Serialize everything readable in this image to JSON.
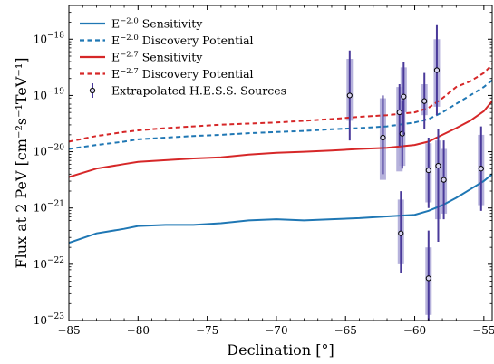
{
  "chart_data": {
    "type": "line",
    "title": "",
    "xlabel": "Declination [°]",
    "ylabel": "Flux at 2 PeV [cm⁻²s⁻¹TeV⁻¹]",
    "xlim": [
      -85,
      -54.4
    ],
    "ylim_log10": [
      -23,
      -17.4
    ],
    "log_y": true,
    "grid": false,
    "legend_position": "upper-left",
    "x_ticks": [
      -85,
      -80,
      -75,
      -70,
      -65,
      -60,
      -55
    ],
    "x_tick_labels": [
      "−85",
      "−80",
      "−75",
      "−70",
      "−65",
      "−60",
      "−55"
    ],
    "y_ticks_log10": [
      -23,
      -22,
      -21,
      -20,
      -19,
      -18
    ],
    "y_tick_labels": [
      {
        "base": "10",
        "exp": "−23"
      },
      {
        "base": "10",
        "exp": "−22"
      },
      {
        "base": "10",
        "exp": "−21"
      },
      {
        "base": "10",
        "exp": "−20"
      },
      {
        "base": "10",
        "exp": "−19"
      },
      {
        "base": "10",
        "exp": "−18"
      }
    ],
    "series": [
      {
        "name": "E^{-2.0} Sensitivity",
        "legend_base": "E",
        "legend_exp": "−2.0",
        "legend_rest": " Sensitivity",
        "color": "#1f77b4",
        "dash": "solid",
        "x": [
          -85,
          -83,
          -81,
          -80,
          -78,
          -76,
          -74,
          -72,
          -70,
          -68,
          -66,
          -64,
          -62,
          -60,
          -59,
          -58,
          -57,
          -56,
          -55,
          -54.4
        ],
        "y_log10": [
          -21.62,
          -21.45,
          -21.37,
          -21.32,
          -21.3,
          -21.3,
          -21.27,
          -21.22,
          -21.2,
          -21.22,
          -21.2,
          -21.18,
          -21.15,
          -21.12,
          -21.05,
          -20.95,
          -20.82,
          -20.67,
          -20.52,
          -20.4
        ]
      },
      {
        "name": "E^{-2.0} Discovery Potential",
        "legend_base": "E",
        "legend_exp": "−2.0",
        "legend_rest": " Discovery Potential",
        "color": "#1f77b4",
        "dash": "dashed",
        "x": [
          -85,
          -83,
          -81,
          -80,
          -78,
          -76,
          -74,
          -72,
          -70,
          -68,
          -66,
          -64,
          -62,
          -60,
          -59,
          -58,
          -57,
          -56,
          -55,
          -54.4
        ],
        "y_log10": [
          -19.95,
          -19.88,
          -19.82,
          -19.78,
          -19.75,
          -19.72,
          -19.7,
          -19.67,
          -19.65,
          -19.63,
          -19.6,
          -19.58,
          -19.55,
          -19.48,
          -19.42,
          -19.3,
          -19.15,
          -19.0,
          -18.85,
          -18.73
        ]
      },
      {
        "name": "E^{-2.7} Sensitivity",
        "legend_base": "E",
        "legend_exp": "−2.7",
        "legend_rest": " Sensitivity",
        "color": "#d62728",
        "dash": "solid",
        "x": [
          -85,
          -83,
          -81,
          -80,
          -78,
          -76,
          -74,
          -72,
          -70,
          -68,
          -66,
          -64,
          -62,
          -60,
          -59,
          -58,
          -57,
          -56,
          -55,
          -54.4
        ],
        "y_log10": [
          -20.45,
          -20.3,
          -20.22,
          -20.18,
          -20.15,
          -20.12,
          -20.1,
          -20.05,
          -20.02,
          -20.0,
          -19.98,
          -19.95,
          -19.93,
          -19.88,
          -19.82,
          -19.7,
          -19.58,
          -19.45,
          -19.28,
          -19.1
        ]
      },
      {
        "name": "E^{-2.7} Discovery Potential",
        "legend_base": "E",
        "legend_exp": "−2.7",
        "legend_rest": " Discovery Potential",
        "color": "#d62728",
        "dash": "dashed",
        "x": [
          -85,
          -83,
          -81,
          -80,
          -78,
          -76,
          -74,
          -72,
          -70,
          -68,
          -66,
          -64,
          -62,
          -60,
          -59,
          -58,
          -57,
          -56,
          -55,
          -54.4
        ],
        "y_log10": [
          -19.82,
          -19.72,
          -19.65,
          -19.62,
          -19.58,
          -19.55,
          -19.52,
          -19.5,
          -19.48,
          -19.45,
          -19.42,
          -19.38,
          -19.35,
          -19.3,
          -19.22,
          -19.05,
          -18.85,
          -18.75,
          -18.6,
          -18.45
        ]
      }
    ],
    "sources": {
      "name": "Extrapolated H.E.S.S. Sources",
      "color": "#4a3a9a",
      "box_color": "#a9a4d6",
      "points": [
        {
          "x": -64.7,
          "y_log10": -19.0,
          "err_log10": [
            -19.8,
            -18.2
          ],
          "box_log10": [
            -19.45,
            -18.35
          ]
        },
        {
          "x": -62.3,
          "y_log10": -19.75,
          "err_log10": [
            -20.4,
            -19.0
          ],
          "box_log10": [
            -20.5,
            -19.05
          ]
        },
        {
          "x": -61.1,
          "y_log10": -19.3,
          "err_log10": [
            -19.9,
            -18.8
          ],
          "box_log10": [
            -20.35,
            -18.85
          ]
        },
        {
          "x": -60.9,
          "y_log10": -19.68,
          "err_log10": [
            -20.3,
            -19.1
          ],
          "box_log10": [
            -20.25,
            -18.95
          ]
        },
        {
          "x": -60.8,
          "y_log10": -19.02,
          "err_log10": [
            -19.7,
            -18.4
          ],
          "box_log10": [
            -19.3,
            -18.5
          ]
        },
        {
          "x": -61.0,
          "y_log10": -21.45,
          "err_log10": [
            -22.15,
            -20.7
          ],
          "box_log10": [
            -22.0,
            -20.85
          ]
        },
        {
          "x": -59.3,
          "y_log10": -19.1,
          "err_log10": [
            -19.6,
            -18.6
          ],
          "box_log10": [
            -19.35,
            -18.8
          ]
        },
        {
          "x": -59.0,
          "y_log10": -20.33,
          "err_log10": [
            -21.0,
            -19.75
          ],
          "box_log10": [
            -20.9,
            -19.85
          ]
        },
        {
          "x": -59.0,
          "y_log10": -22.25,
          "err_log10": [
            -23.0,
            -21.4
          ],
          "box_log10": [
            -22.9,
            -21.7
          ]
        },
        {
          "x": -58.4,
          "y_log10": -18.55,
          "err_log10": [
            -19.35,
            -17.75
          ],
          "box_log10": [
            -19.2,
            -18.0
          ]
        },
        {
          "x": -58.3,
          "y_log10": -20.25,
          "err_log10": [
            -21.6,
            -19.6
          ],
          "box_log10": [
            -21.2,
            -19.8
          ]
        },
        {
          "x": -57.9,
          "y_log10": -20.5,
          "err_log10": [
            -21.2,
            -19.8
          ],
          "box_log10": [
            -21.1,
            -19.95
          ]
        },
        {
          "x": -55.2,
          "y_log10": -20.3,
          "err_log10": [
            -21.05,
            -19.55
          ],
          "box_log10": [
            -20.95,
            -19.7
          ]
        }
      ]
    }
  }
}
